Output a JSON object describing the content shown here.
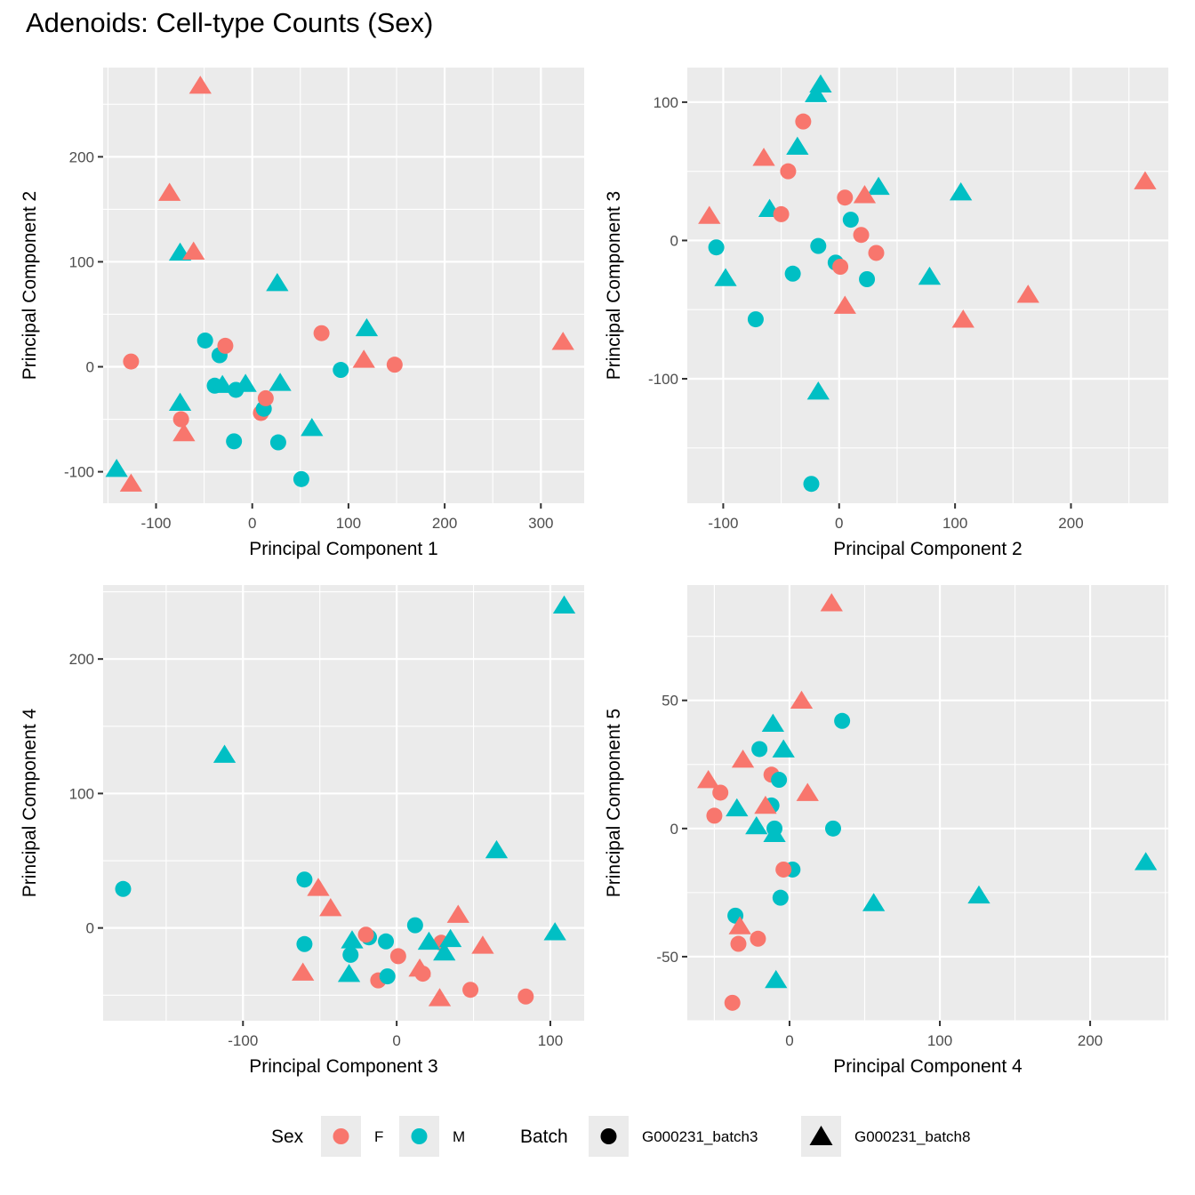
{
  "title": "Adenoids: Cell-type Counts (Sex)",
  "colors": {
    "F": "#F8766D",
    "M": "#00BFC4",
    "panel_bg": "#EBEBEB",
    "grid": "#FFFFFF",
    "tick": "#333333"
  },
  "legend": {
    "sex_title": "Sex",
    "sex_items": [
      {
        "key": "F",
        "label": "F"
      },
      {
        "key": "M",
        "label": "M"
      }
    ],
    "batch_title": "Batch",
    "batch_items": [
      {
        "shape": "circle",
        "label": "G000231_batch3"
      },
      {
        "shape": "triangle",
        "label": "G000231_batch8"
      }
    ],
    "position": "bottom"
  },
  "chart_data": [
    {
      "type": "scatter",
      "xlabel": "Principal Component 1",
      "ylabel": "Principal Component 2",
      "xticks": [
        -100,
        0,
        100,
        200,
        300
      ],
      "yticks": [
        -100,
        0,
        100,
        200
      ],
      "xlim": [
        -155,
        345
      ],
      "ylim": [
        -130,
        285
      ],
      "grid": true,
      "points": [
        {
          "x": -54,
          "y": 268,
          "sex": "F",
          "batch": "triangle"
        },
        {
          "x": -86,
          "y": 166,
          "sex": "F",
          "batch": "triangle"
        },
        {
          "x": -75,
          "y": 109,
          "sex": "M",
          "batch": "triangle"
        },
        {
          "x": -61,
          "y": 110,
          "sex": "F",
          "batch": "triangle"
        },
        {
          "x": 26,
          "y": 80,
          "sex": "M",
          "batch": "triangle"
        },
        {
          "x": 72,
          "y": 32,
          "sex": "F",
          "batch": "circle"
        },
        {
          "x": 119,
          "y": 37,
          "sex": "M",
          "batch": "triangle"
        },
        {
          "x": 323,
          "y": 24,
          "sex": "F",
          "batch": "triangle"
        },
        {
          "x": -49,
          "y": 25,
          "sex": "M",
          "batch": "circle"
        },
        {
          "x": -34,
          "y": 11,
          "sex": "M",
          "batch": "circle"
        },
        {
          "x": -28,
          "y": 20,
          "sex": "F",
          "batch": "circle"
        },
        {
          "x": -126,
          "y": 5,
          "sex": "F",
          "batch": "circle"
        },
        {
          "x": 116,
          "y": 7,
          "sex": "F",
          "batch": "triangle"
        },
        {
          "x": 148,
          "y": 2,
          "sex": "F",
          "batch": "circle"
        },
        {
          "x": 92,
          "y": -3,
          "sex": "M",
          "batch": "circle"
        },
        {
          "x": -39,
          "y": -18,
          "sex": "M",
          "batch": "circle"
        },
        {
          "x": -31,
          "y": -17,
          "sex": "M",
          "batch": "triangle"
        },
        {
          "x": -17,
          "y": -22,
          "sex": "M",
          "batch": "circle"
        },
        {
          "x": -7,
          "y": -16,
          "sex": "M",
          "batch": "triangle"
        },
        {
          "x": 29,
          "y": -15,
          "sex": "M",
          "batch": "triangle"
        },
        {
          "x": 9,
          "y": -44,
          "sex": "F",
          "batch": "circle"
        },
        {
          "x": 12,
          "y": -40,
          "sex": "M",
          "batch": "circle"
        },
        {
          "x": 14,
          "y": -30,
          "sex": "F",
          "batch": "circle"
        },
        {
          "x": -75,
          "y": -34,
          "sex": "M",
          "batch": "triangle"
        },
        {
          "x": -71,
          "y": -63,
          "sex": "F",
          "batch": "triangle"
        },
        {
          "x": -74,
          "y": -50,
          "sex": "F",
          "batch": "circle"
        },
        {
          "x": -19,
          "y": -71,
          "sex": "M",
          "batch": "circle"
        },
        {
          "x": 27,
          "y": -72,
          "sex": "M",
          "batch": "circle"
        },
        {
          "x": 62,
          "y": -58,
          "sex": "M",
          "batch": "triangle"
        },
        {
          "x": 51,
          "y": -107,
          "sex": "M",
          "batch": "circle"
        },
        {
          "x": -141,
          "y": -97,
          "sex": "M",
          "batch": "triangle"
        },
        {
          "x": -126,
          "y": -111,
          "sex": "F",
          "batch": "triangle"
        }
      ]
    },
    {
      "type": "scatter",
      "xlabel": "Principal Component 2",
      "ylabel": "Principal Component 3",
      "xticks": [
        -100,
        0,
        100,
        200
      ],
      "yticks": [
        -100,
        0,
        100
      ],
      "xlim": [
        -131,
        284
      ],
      "ylim": [
        -190,
        125
      ],
      "grid": true,
      "points": [
        {
          "x": -16,
          "y": 113,
          "sex": "M",
          "batch": "triangle"
        },
        {
          "x": -20,
          "y": 106,
          "sex": "M",
          "batch": "triangle"
        },
        {
          "x": -31,
          "y": 86,
          "sex": "F",
          "batch": "circle"
        },
        {
          "x": -36,
          "y": 68,
          "sex": "M",
          "batch": "triangle"
        },
        {
          "x": -65,
          "y": 60,
          "sex": "F",
          "batch": "triangle"
        },
        {
          "x": -44,
          "y": 50,
          "sex": "F",
          "batch": "circle"
        },
        {
          "x": 5,
          "y": 31,
          "sex": "F",
          "batch": "circle"
        },
        {
          "x": 34,
          "y": 39,
          "sex": "M",
          "batch": "triangle"
        },
        {
          "x": 22,
          "y": 33,
          "sex": "F",
          "batch": "triangle"
        },
        {
          "x": 105,
          "y": 35,
          "sex": "M",
          "batch": "triangle"
        },
        {
          "x": -60,
          "y": 23,
          "sex": "M",
          "batch": "triangle"
        },
        {
          "x": -50,
          "y": 19,
          "sex": "F",
          "batch": "circle"
        },
        {
          "x": -112,
          "y": 18,
          "sex": "F",
          "batch": "triangle"
        },
        {
          "x": 10,
          "y": 15,
          "sex": "M",
          "batch": "circle"
        },
        {
          "x": 19,
          "y": 4,
          "sex": "F",
          "batch": "circle"
        },
        {
          "x": -106,
          "y": -5,
          "sex": "M",
          "batch": "circle"
        },
        {
          "x": -18,
          "y": -4,
          "sex": "M",
          "batch": "circle"
        },
        {
          "x": 32,
          "y": -9,
          "sex": "F",
          "batch": "circle"
        },
        {
          "x": -3,
          "y": -16,
          "sex": "M",
          "batch": "circle"
        },
        {
          "x": 1,
          "y": -19,
          "sex": "F",
          "batch": "circle"
        },
        {
          "x": -40,
          "y": -24,
          "sex": "M",
          "batch": "circle"
        },
        {
          "x": -98,
          "y": -27,
          "sex": "M",
          "batch": "triangle"
        },
        {
          "x": 24,
          "y": -28,
          "sex": "M",
          "batch": "circle"
        },
        {
          "x": 78,
          "y": -26,
          "sex": "M",
          "batch": "triangle"
        },
        {
          "x": 5,
          "y": -47,
          "sex": "F",
          "batch": "triangle"
        },
        {
          "x": -72,
          "y": -57,
          "sex": "M",
          "batch": "circle"
        },
        {
          "x": 107,
          "y": -57,
          "sex": "F",
          "batch": "triangle"
        },
        {
          "x": 163,
          "y": -39,
          "sex": "F",
          "batch": "triangle"
        },
        {
          "x": 264,
          "y": 43,
          "sex": "F",
          "batch": "triangle"
        },
        {
          "x": -18,
          "y": -109,
          "sex": "M",
          "batch": "triangle"
        },
        {
          "x": -24,
          "y": -176,
          "sex": "M",
          "batch": "circle"
        }
      ]
    },
    {
      "type": "scatter",
      "xlabel": "Principal Component 3",
      "ylabel": "Principal Component 4",
      "xticks": [
        -100,
        0,
        100
      ],
      "yticks": [
        0,
        100,
        200
      ],
      "xlim": [
        -191,
        122
      ],
      "ylim": [
        -69,
        255
      ],
      "grid": true,
      "points": [
        {
          "x": 109,
          "y": 240,
          "sex": "M",
          "batch": "triangle"
        },
        {
          "x": -112,
          "y": 129,
          "sex": "M",
          "batch": "triangle"
        },
        {
          "x": 65,
          "y": 58,
          "sex": "M",
          "batch": "triangle"
        },
        {
          "x": -178,
          "y": 29,
          "sex": "M",
          "batch": "circle"
        },
        {
          "x": -60,
          "y": 36,
          "sex": "M",
          "batch": "circle"
        },
        {
          "x": -51,
          "y": 30,
          "sex": "F",
          "batch": "triangle"
        },
        {
          "x": -43,
          "y": 15,
          "sex": "F",
          "batch": "triangle"
        },
        {
          "x": 12,
          "y": 2,
          "sex": "M",
          "batch": "circle"
        },
        {
          "x": 40,
          "y": 10,
          "sex": "F",
          "batch": "triangle"
        },
        {
          "x": 103,
          "y": -3,
          "sex": "M",
          "batch": "triangle"
        },
        {
          "x": -60,
          "y": -12,
          "sex": "M",
          "batch": "circle"
        },
        {
          "x": -29,
          "y": -9,
          "sex": "M",
          "batch": "triangle"
        },
        {
          "x": -18,
          "y": -7,
          "sex": "M",
          "batch": "circle"
        },
        {
          "x": -20,
          "y": -5,
          "sex": "F",
          "batch": "circle"
        },
        {
          "x": -7,
          "y": -10,
          "sex": "M",
          "batch": "circle"
        },
        {
          "x": 29,
          "y": -11,
          "sex": "F",
          "batch": "circle"
        },
        {
          "x": 21,
          "y": -10,
          "sex": "M",
          "batch": "triangle"
        },
        {
          "x": 35,
          "y": -8,
          "sex": "M",
          "batch": "triangle"
        },
        {
          "x": 56,
          "y": -13,
          "sex": "F",
          "batch": "triangle"
        },
        {
          "x": 31,
          "y": -18,
          "sex": "M",
          "batch": "triangle"
        },
        {
          "x": -30,
          "y": -20,
          "sex": "M",
          "batch": "circle"
        },
        {
          "x": 1,
          "y": -21,
          "sex": "F",
          "batch": "circle"
        },
        {
          "x": -61,
          "y": -33,
          "sex": "F",
          "batch": "triangle"
        },
        {
          "x": -31,
          "y": -34,
          "sex": "M",
          "batch": "triangle"
        },
        {
          "x": 15,
          "y": -30,
          "sex": "F",
          "batch": "triangle"
        },
        {
          "x": 17,
          "y": -34,
          "sex": "F",
          "batch": "circle"
        },
        {
          "x": -12,
          "y": -39,
          "sex": "F",
          "batch": "circle"
        },
        {
          "x": -6,
          "y": -36,
          "sex": "M",
          "batch": "circle"
        },
        {
          "x": 48,
          "y": -46,
          "sex": "F",
          "batch": "circle"
        },
        {
          "x": 28,
          "y": -52,
          "sex": "F",
          "batch": "triangle"
        },
        {
          "x": 84,
          "y": -51,
          "sex": "F",
          "batch": "circle"
        }
      ]
    },
    {
      "type": "scatter",
      "xlabel": "Principal Component 4",
      "ylabel": "Principal Component 5",
      "xticks": [
        0,
        100,
        200
      ],
      "yticks": [
        -50,
        0,
        50
      ],
      "xlim": [
        -68,
        252
      ],
      "ylim": [
        -75,
        95
      ],
      "grid": true,
      "points": [
        {
          "x": 28,
          "y": 88,
          "sex": "F",
          "batch": "triangle"
        },
        {
          "x": 8,
          "y": 50,
          "sex": "F",
          "batch": "triangle"
        },
        {
          "x": 35,
          "y": 42,
          "sex": "M",
          "batch": "circle"
        },
        {
          "x": -11,
          "y": 41,
          "sex": "M",
          "batch": "triangle"
        },
        {
          "x": -20,
          "y": 31,
          "sex": "M",
          "batch": "circle"
        },
        {
          "x": -4,
          "y": 31,
          "sex": "M",
          "batch": "triangle"
        },
        {
          "x": -31,
          "y": 27,
          "sex": "F",
          "batch": "triangle"
        },
        {
          "x": -12,
          "y": 21,
          "sex": "F",
          "batch": "circle"
        },
        {
          "x": -7,
          "y": 19,
          "sex": "M",
          "batch": "circle"
        },
        {
          "x": -54,
          "y": 19,
          "sex": "F",
          "batch": "triangle"
        },
        {
          "x": -46,
          "y": 14,
          "sex": "F",
          "batch": "circle"
        },
        {
          "x": 12,
          "y": 14,
          "sex": "F",
          "batch": "triangle"
        },
        {
          "x": -12,
          "y": 9,
          "sex": "M",
          "batch": "circle"
        },
        {
          "x": -16,
          "y": 9,
          "sex": "F",
          "batch": "triangle"
        },
        {
          "x": -35,
          "y": 8,
          "sex": "M",
          "batch": "triangle"
        },
        {
          "x": -50,
          "y": 5,
          "sex": "F",
          "batch": "circle"
        },
        {
          "x": -22,
          "y": 1,
          "sex": "M",
          "batch": "triangle"
        },
        {
          "x": -10,
          "y": 0,
          "sex": "M",
          "batch": "circle"
        },
        {
          "x": -10,
          "y": -2,
          "sex": "M",
          "batch": "triangle"
        },
        {
          "x": 29,
          "y": 0,
          "sex": "M",
          "batch": "circle"
        },
        {
          "x": 2,
          "y": -16,
          "sex": "M",
          "batch": "circle"
        },
        {
          "x": -4,
          "y": -16,
          "sex": "F",
          "batch": "circle"
        },
        {
          "x": -6,
          "y": -27,
          "sex": "M",
          "batch": "circle"
        },
        {
          "x": 56,
          "y": -29,
          "sex": "M",
          "batch": "triangle"
        },
        {
          "x": 126,
          "y": -26,
          "sex": "M",
          "batch": "triangle"
        },
        {
          "x": 237,
          "y": -13,
          "sex": "M",
          "batch": "triangle"
        },
        {
          "x": -36,
          "y": -34,
          "sex": "M",
          "batch": "circle"
        },
        {
          "x": -33,
          "y": -38,
          "sex": "F",
          "batch": "triangle"
        },
        {
          "x": -34,
          "y": -45,
          "sex": "F",
          "batch": "circle"
        },
        {
          "x": -21,
          "y": -43,
          "sex": "F",
          "batch": "circle"
        },
        {
          "x": -9,
          "y": -59,
          "sex": "M",
          "batch": "triangle"
        },
        {
          "x": -38,
          "y": -68,
          "sex": "F",
          "batch": "circle"
        }
      ]
    }
  ]
}
